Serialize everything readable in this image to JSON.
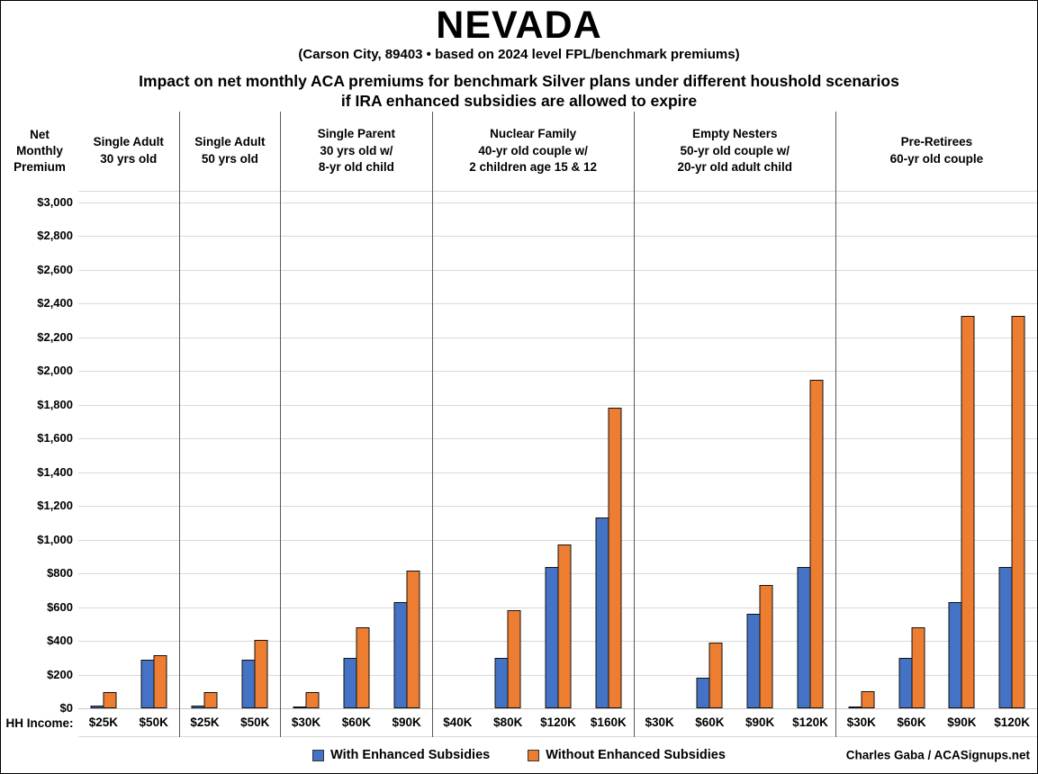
{
  "title": "NEVADA",
  "subtitle": "(Carson City, 89403 • based on 2024 level FPL/benchmark premiums)",
  "heading_line1": "Impact on net monthly ACA premiums for benchmark Silver plans under different houshold scenarios",
  "heading_line2": "if IRA enhanced subsidies are allowed to expire",
  "y_axis_title": "Net\nMonthly\nPremium",
  "x_axis_title": "HH Income:",
  "credit": "Charles Gaba / ACASignups.net",
  "colors": {
    "with_enhanced": "#4472C4",
    "without_enhanced": "#ED7D31",
    "gridline": "#D9D9D9",
    "divider": "#595959",
    "bar_outline": "#111111",
    "background": "#FFFFFF",
    "text": "#000000"
  },
  "chart_data": {
    "type": "bar",
    "title": "Impact on net monthly ACA premiums for benchmark Silver plans under different houshold scenarios if IRA enhanced subsidies are allowed to expire",
    "ylabel": "Net Monthly Premium ($)",
    "xlabel": "HH Income",
    "ylim": [
      0,
      3000
    ],
    "ytick_step": 200,
    "grid": true,
    "legend_position": "bottom",
    "series": [
      {
        "name": "With Enhanced Subsidies",
        "color": "#4472C4"
      },
      {
        "name": "Without Enhanced Subsidies",
        "color": "#ED7D31"
      }
    ],
    "groups": [
      {
        "label": "Single Adult\n30 yrs old",
        "incomes": [
          "$25K",
          "$50K"
        ],
        "values": [
          [
            15,
            290
          ],
          [
            95,
            315
          ]
        ]
      },
      {
        "label": "Single Adult\n50 yrs old",
        "incomes": [
          "$25K",
          "$50K"
        ],
        "values": [
          [
            15,
            290
          ],
          [
            95,
            405
          ]
        ]
      },
      {
        "label": "Single Parent\n30 yrs old w/\n8-yr old child",
        "incomes": [
          "$30K",
          "$60K",
          "$90K"
        ],
        "values": [
          [
            5,
            300,
            630
          ],
          [
            95,
            480,
            815
          ]
        ]
      },
      {
        "label": "Nuclear Family\n40-yr old couple w/\n2 children age 15 & 12",
        "incomes": [
          "$40K",
          "$80K",
          "$120K",
          "$160K"
        ],
        "values": [
          [
            0,
            300,
            840,
            1130
          ],
          [
            0,
            580,
            970,
            1785
          ]
        ]
      },
      {
        "label": "Empty Nesters\n50-yr old couple w/\n20-yr old adult child",
        "incomes": [
          "$30K",
          "$60K",
          "$90K",
          "$120K"
        ],
        "values": [
          [
            0,
            180,
            560,
            840
          ],
          [
            0,
            390,
            730,
            1950
          ]
        ]
      },
      {
        "label": "Pre-Retirees\n60-yr old couple",
        "incomes": [
          "$30K",
          "$60K",
          "$90K",
          "$120K"
        ],
        "values": [
          [
            10,
            300,
            630,
            840
          ],
          [
            100,
            480,
            2330,
            2330
          ]
        ]
      }
    ]
  }
}
